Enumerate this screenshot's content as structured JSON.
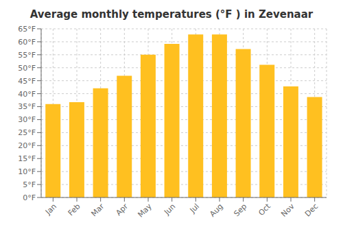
{
  "chart_data": {
    "type": "bar",
    "title": "Average monthly temperatures (°F ) in Zevenaar",
    "categories": [
      "Jan",
      "Feb",
      "Mar",
      "Apr",
      "May",
      "Jun",
      "Jul",
      "Aug",
      "Sep",
      "Oct",
      "Nov",
      "Dec"
    ],
    "values": [
      36.0,
      36.7,
      42.1,
      46.9,
      55.0,
      59.2,
      62.8,
      62.8,
      57.2,
      51.1,
      42.8,
      38.7
    ],
    "color": "#FFC020",
    "ylim": [
      0,
      65
    ],
    "yticks": [
      {
        "value": 0,
        "label": "0°F"
      },
      {
        "value": 5,
        "label": "5°F"
      },
      {
        "value": 10,
        "label": "10°F"
      },
      {
        "value": 15,
        "label": "15°F"
      },
      {
        "value": 20,
        "label": "20°F"
      },
      {
        "value": 25,
        "label": "25°F"
      },
      {
        "value": 30,
        "label": "30°F"
      },
      {
        "value": 35,
        "label": "35°F"
      },
      {
        "value": 40,
        "label": "40°F"
      },
      {
        "value": 45,
        "label": "45°F"
      },
      {
        "value": 50,
        "label": "50°F"
      },
      {
        "value": 55,
        "label": "55°F"
      },
      {
        "value": 60,
        "label": "60°F"
      },
      {
        "value": 65,
        "label": "65°F"
      }
    ],
    "grid": true
  }
}
